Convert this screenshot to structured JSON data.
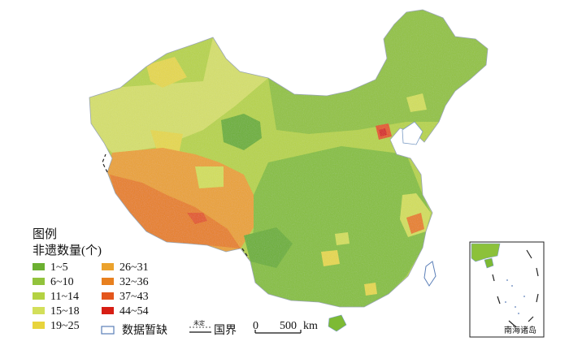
{
  "legend": {
    "title": "图例",
    "subtitle": "非遗数量(个)",
    "classes": [
      {
        "label": "1~5",
        "color": "#6cb031"
      },
      {
        "label": "6~10",
        "color": "#92c33c"
      },
      {
        "label": "11~14",
        "color": "#b4d242"
      },
      {
        "label": "15~18",
        "color": "#d3df5a"
      },
      {
        "label": "19~25",
        "color": "#e8d43c"
      },
      {
        "label": "26~31",
        "color": "#eba22d"
      },
      {
        "label": "32~36",
        "color": "#e8801f"
      },
      {
        "label": "37~43",
        "color": "#e4561c"
      },
      {
        "label": "44~54",
        "color": "#d71e14"
      }
    ],
    "no_data": {
      "label": "数据暂缺",
      "color": "#ffffff",
      "outline": "#5b7fb8"
    },
    "border": {
      "label": "国界",
      "undetermined_label": "未定"
    }
  },
  "scale_bar": {
    "zero": "0",
    "value": "500",
    "unit": "km"
  },
  "inset": {
    "label": "南海诸岛"
  }
}
